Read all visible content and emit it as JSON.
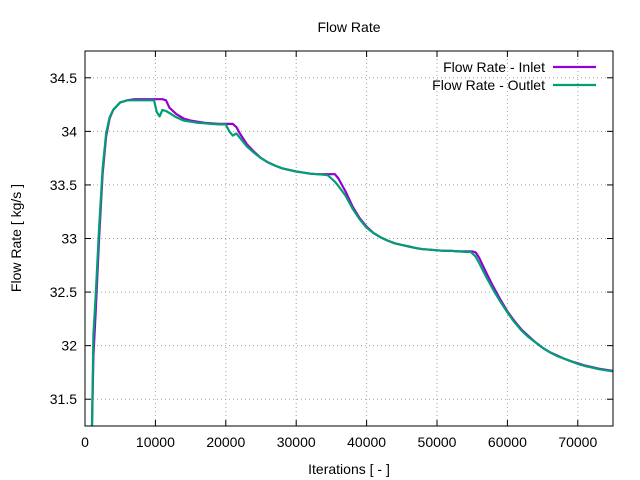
{
  "chart_data": {
    "type": "line",
    "title": "Flow Rate",
    "xlabel": "Iterations [ - ]",
    "ylabel": "Flow Rate [ kg/s ]",
    "xlim": [
      0,
      75000
    ],
    "ylim": [
      31.25,
      34.75
    ],
    "xticks": [
      0,
      10000,
      20000,
      30000,
      40000,
      50000,
      60000,
      70000
    ],
    "xtick_labels": [
      "0",
      "10000",
      "20000",
      "30000",
      "40000",
      "50000",
      "60000",
      "70000"
    ],
    "yticks": [
      31.5,
      32,
      32.5,
      33,
      33.5,
      34,
      34.5
    ],
    "ytick_labels": [
      "31.5",
      "32",
      "32.5",
      "33",
      "33.5",
      "34",
      "34.5"
    ],
    "grid": true,
    "legend_position": "top-right",
    "series": [
      {
        "name": "Flow Rate - Inlet",
        "color": "#9400d3",
        "x": [
          1000,
          1200,
          1500,
          2000,
          2500,
          3000,
          3500,
          4000,
          5000,
          6000,
          7000,
          8000,
          9000,
          10000,
          11000,
          11500,
          12000,
          13000,
          14000,
          15000,
          16000,
          17000,
          18000,
          19000,
          20000,
          21000,
          21500,
          22000,
          23000,
          24000,
          25000,
          26000,
          27000,
          28000,
          29000,
          30000,
          31000,
          32000,
          33000,
          34000,
          35000,
          35500,
          36000,
          37000,
          38000,
          39000,
          40000,
          41000,
          42000,
          43000,
          44000,
          45000,
          46000,
          47000,
          48000,
          49000,
          50000,
          51000,
          52000,
          53000,
          54000,
          55000,
          55500,
          56000,
          57000,
          58000,
          59000,
          60000,
          61000,
          62000,
          63000,
          64000,
          65000,
          66000,
          67000,
          68000,
          69000,
          70000,
          71000,
          72000,
          73000,
          74000,
          75000
        ],
        "values": [
          31.25,
          31.9,
          32.3,
          33.0,
          33.6,
          33.95,
          34.12,
          34.2,
          34.27,
          34.29,
          34.3,
          34.3,
          34.3,
          34.3,
          34.3,
          34.29,
          34.22,
          34.16,
          34.12,
          34.1,
          34.09,
          34.08,
          34.075,
          34.07,
          34.07,
          34.07,
          34.04,
          33.98,
          33.88,
          33.81,
          33.75,
          33.71,
          33.68,
          33.655,
          33.64,
          33.625,
          33.615,
          33.605,
          33.6,
          33.6,
          33.6,
          33.6,
          33.56,
          33.44,
          33.3,
          33.19,
          33.11,
          33.05,
          33.01,
          32.98,
          32.955,
          32.94,
          32.925,
          32.91,
          32.9,
          32.895,
          32.89,
          32.885,
          32.885,
          32.88,
          32.88,
          32.88,
          32.87,
          32.82,
          32.68,
          32.55,
          32.43,
          32.32,
          32.23,
          32.15,
          32.09,
          32.03,
          31.98,
          31.94,
          31.91,
          31.88,
          31.855,
          31.835,
          31.815,
          31.8,
          31.785,
          31.775,
          31.765
        ]
      },
      {
        "name": "Flow Rate - Outlet",
        "color": "#009e73",
        "x": [
          1000,
          1200,
          1500,
          2000,
          2500,
          3000,
          3500,
          4000,
          5000,
          6000,
          7000,
          8000,
          9000,
          9800,
          10200,
          10600,
          11000,
          11500,
          12000,
          13000,
          14000,
          15000,
          16000,
          17000,
          18000,
          19000,
          20000,
          20500,
          21000,
          21500,
          22000,
          23000,
          24000,
          25000,
          26000,
          27000,
          28000,
          29000,
          30000,
          31000,
          32000,
          33000,
          34000,
          34500,
          35000,
          35500,
          36000,
          37000,
          38000,
          39000,
          40000,
          41000,
          42000,
          43000,
          44000,
          45000,
          46000,
          47000,
          48000,
          49000,
          50000,
          51000,
          52000,
          53000,
          54000,
          54800,
          55500,
          56000,
          57000,
          58000,
          59000,
          60000,
          61000,
          62000,
          63000,
          64000,
          65000,
          66000,
          67000,
          68000,
          69000,
          70000,
          71000,
          72000,
          73000,
          74000,
          75000
        ],
        "values": [
          31.25,
          32.1,
          32.45,
          33.1,
          33.65,
          33.98,
          34.13,
          34.2,
          34.27,
          34.29,
          34.29,
          34.29,
          34.29,
          34.29,
          34.18,
          34.14,
          34.2,
          34.19,
          34.17,
          34.13,
          34.1,
          34.09,
          34.08,
          34.075,
          34.07,
          34.065,
          34.065,
          34.0,
          33.96,
          33.98,
          33.94,
          33.86,
          33.8,
          33.75,
          33.71,
          33.68,
          33.655,
          33.64,
          33.625,
          33.615,
          33.605,
          33.6,
          33.595,
          33.59,
          33.56,
          33.53,
          33.49,
          33.4,
          33.28,
          33.18,
          33.1,
          33.05,
          33.01,
          32.98,
          32.955,
          32.94,
          32.925,
          32.91,
          32.9,
          32.895,
          32.89,
          32.885,
          32.885,
          32.88,
          32.875,
          32.875,
          32.83,
          32.77,
          32.64,
          32.52,
          32.41,
          32.31,
          32.22,
          32.14,
          32.08,
          32.03,
          31.98,
          31.94,
          31.905,
          31.88,
          31.855,
          31.83,
          31.81,
          31.795,
          31.78,
          31.77,
          31.76
        ]
      }
    ]
  }
}
